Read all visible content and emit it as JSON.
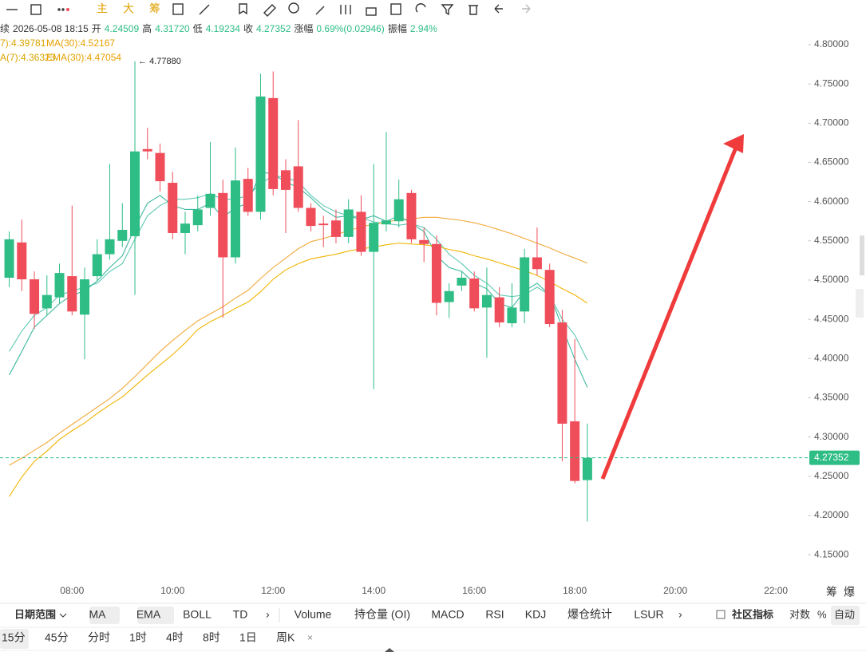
{
  "toolbar": {
    "top_labels": [
      "主",
      "大",
      "筹"
    ]
  },
  "info": {
    "prefix": "续",
    "datetime": "2026-05-08 18:15",
    "open_label": "开",
    "open": "4.24509",
    "high_label": "高",
    "high": "4.31720",
    "low_label": "低",
    "low": "4.19234",
    "close_label": "收",
    "close": "4.27352",
    "change_label": "涨幅",
    "change": "0.69%(0.02946)",
    "amplitude_label": "振幅",
    "amplitude": "2.94%"
  },
  "chart_data": {
    "type": "candlestick",
    "x": [
      "06:45",
      "07:00",
      "07:15",
      "07:30",
      "07:45",
      "08:00",
      "08:15",
      "08:30",
      "08:45",
      "09:00",
      "09:15",
      "09:30",
      "09:45",
      "10:00",
      "10:15",
      "10:30",
      "10:45",
      "11:00",
      "11:15",
      "11:30",
      "11:45",
      "12:00",
      "12:15",
      "12:30",
      "12:45",
      "13:00",
      "13:15",
      "13:30",
      "13:45",
      "14:00",
      "14:15",
      "14:30",
      "14:45",
      "15:00",
      "15:15",
      "15:30",
      "15:45",
      "16:00",
      "16:15",
      "16:30",
      "16:45",
      "17:00",
      "17:15",
      "17:30",
      "17:45",
      "18:00",
      "18:15"
    ],
    "open": [
      4.503,
      4.548,
      4.501,
      4.464,
      4.478,
      4.505,
      4.456,
      4.505,
      4.533,
      4.55,
      4.556,
      4.667,
      4.662,
      4.624,
      4.56,
      4.57,
      4.592,
      4.611,
      4.529,
      4.629,
      4.587,
      4.732,
      4.64,
      4.645,
      4.592,
      4.572,
      4.576,
      4.555,
      4.587,
      4.536,
      4.571,
      4.575,
      4.611,
      4.551,
      4.546,
      4.472,
      4.493,
      4.502,
      4.465,
      4.478,
      4.445,
      4.46,
      4.529,
      4.513,
      4.446,
      4.32,
      4.24509
    ],
    "high": [
      4.562,
      4.577,
      4.511,
      4.506,
      4.521,
      4.595,
      4.516,
      4.552,
      4.648,
      4.598,
      4.7788,
      4.694,
      4.674,
      4.638,
      4.587,
      4.608,
      4.676,
      4.628,
      4.669,
      4.643,
      4.763,
      4.766,
      4.654,
      4.704,
      4.598,
      4.582,
      4.59,
      4.603,
      4.608,
      4.648,
      4.689,
      4.628,
      4.615,
      4.567,
      4.557,
      4.496,
      4.511,
      4.511,
      4.516,
      4.491,
      4.496,
      4.54,
      4.567,
      4.521,
      4.462,
      4.425,
      4.3172
    ],
    "low": [
      4.491,
      4.486,
      4.438,
      4.455,
      4.47,
      4.455,
      4.399,
      4.499,
      4.526,
      4.542,
      4.481,
      4.654,
      4.613,
      4.552,
      4.533,
      4.562,
      4.582,
      4.452,
      4.521,
      4.582,
      4.577,
      4.608,
      4.56,
      4.587,
      4.562,
      4.542,
      4.547,
      4.547,
      4.531,
      4.361,
      4.562,
      4.567,
      4.547,
      4.523,
      4.455,
      4.452,
      4.486,
      4.46,
      4.401,
      4.44,
      4.44,
      4.445,
      4.506,
      4.44,
      4.269,
      4.241,
      4.19234
    ],
    "close": [
      4.552,
      4.501,
      4.457,
      4.481,
      4.509,
      4.46,
      4.501,
      4.533,
      4.552,
      4.564,
      4.664,
      4.664,
      4.626,
      4.56,
      4.572,
      4.59,
      4.61,
      4.529,
      4.627,
      4.587,
      4.734,
      4.616,
      4.615,
      4.592,
      4.569,
      4.57,
      4.555,
      4.59,
      4.536,
      4.573,
      4.576,
      4.603,
      4.552,
      4.546,
      4.471,
      4.486,
      4.503,
      4.464,
      4.481,
      4.446,
      4.465,
      4.529,
      4.514,
      4.444,
      4.317,
      4.244,
      4.27352
    ],
    "up_color": "#2ebd85",
    "down_color": "#ef4d5a",
    "series": [
      {
        "name": "7):4.39781",
        "color": "#5cc9b3",
        "values": [
          4.409,
          4.435,
          4.455,
          4.465,
          4.481,
          4.486,
          4.491,
          4.496,
          4.511,
          4.521,
          4.552,
          4.582,
          4.595,
          4.603,
          4.603,
          4.605,
          4.61,
          4.603,
          4.603,
          4.608,
          4.623,
          4.633,
          4.631,
          4.625,
          4.608,
          4.595,
          4.587,
          4.582,
          4.58,
          4.574,
          4.572,
          4.57,
          4.572,
          4.567,
          4.552,
          4.533,
          4.521,
          4.506,
          4.496,
          4.481,
          4.479,
          4.481,
          4.491,
          4.481,
          4.45,
          4.43,
          4.39781
        ]
      },
      {
        "name": "MA(30):4.52167",
        "color": "#f2a93b",
        "values": [
          4.264,
          4.273,
          4.283,
          4.293,
          4.305,
          4.316,
          4.327,
          4.338,
          4.349,
          4.362,
          4.377,
          4.393,
          4.409,
          4.423,
          4.436,
          4.448,
          4.457,
          4.466,
          4.477,
          4.487,
          4.502,
          4.516,
          4.528,
          4.54,
          4.549,
          4.553,
          4.558,
          4.563,
          4.568,
          4.571,
          4.574,
          4.577,
          4.578,
          4.58,
          4.58,
          4.578,
          4.576,
          4.573,
          4.569,
          4.564,
          4.559,
          4.553,
          4.547,
          4.541,
          4.534,
          4.528,
          4.52167
        ]
      },
      {
        "name": "A(7):4.36323",
        "color": "#3fb8a0",
        "values": [
          4.379,
          4.409,
          4.44,
          4.455,
          4.47,
          4.481,
          4.486,
          4.499,
          4.516,
          4.531,
          4.567,
          4.598,
          4.608,
          4.595,
          4.59,
          4.59,
          4.598,
          4.58,
          4.592,
          4.598,
          4.638,
          4.635,
          4.625,
          4.618,
          4.605,
          4.59,
          4.58,
          4.582,
          4.577,
          4.582,
          4.575,
          4.582,
          4.572,
          4.562,
          4.531,
          4.516,
          4.511,
          4.496,
          4.489,
          4.47,
          4.465,
          4.486,
          4.496,
          4.481,
          4.44,
          4.399,
          4.36323
        ]
      },
      {
        "name": "EMA(30):4.47054",
        "color": "#f0b400",
        "values": [
          4.224,
          4.249,
          4.269,
          4.282,
          4.297,
          4.308,
          4.318,
          4.33,
          4.341,
          4.351,
          4.365,
          4.379,
          4.392,
          4.405,
          4.42,
          4.437,
          4.447,
          4.455,
          4.464,
          4.472,
          4.485,
          4.501,
          4.513,
          4.521,
          4.527,
          4.53,
          4.533,
          4.537,
          4.54,
          4.542,
          4.545,
          4.547,
          4.546,
          4.545,
          4.543,
          4.539,
          4.536,
          4.531,
          4.527,
          4.522,
          4.517,
          4.512,
          4.506,
          4.498,
          4.489,
          4.481,
          4.47054
        ]
      }
    ],
    "xlim": [
      "06:34",
      "22:38"
    ],
    "xticks": [
      "08:00",
      "10:00",
      "12:00",
      "14:00",
      "16:00",
      "18:00",
      "20:00",
      "22:00"
    ],
    "ylim": [
      4.1145,
      4.8112
    ],
    "yticks": [
      {
        "value": 4.8,
        "label": "4.80000"
      },
      {
        "value": 4.75,
        "label": "4.75000"
      },
      {
        "value": 4.7,
        "label": "4.70000"
      },
      {
        "value": 4.65,
        "label": "4.65000"
      },
      {
        "value": 4.6,
        "label": "4.60000"
      },
      {
        "value": 4.55,
        "label": "4.55000"
      },
      {
        "value": 4.5,
        "label": "4.50000"
      },
      {
        "value": 4.45,
        "label": "4.45000"
      },
      {
        "value": 4.4,
        "label": "4.40000"
      },
      {
        "value": 4.35,
        "label": "4.35000"
      },
      {
        "value": 4.3,
        "label": "4.30000"
      },
      {
        "value": 4.25,
        "label": "4.25000"
      },
      {
        "value": 4.2,
        "label": "4.20000"
      },
      {
        "value": 4.15,
        "label": "4.15000"
      }
    ],
    "high_annotation": {
      "value": 4.7788,
      "label": "← 4.77880"
    },
    "last_price": {
      "value": 4.27352,
      "label": "4.27352"
    },
    "right_labels": [
      "筹",
      "爆"
    ]
  },
  "bottom_toolbar": {
    "date_range": "日期范围",
    "indicators": [
      "MA",
      "EMA",
      "BOLL",
      "TD"
    ],
    "more": "›",
    "sub_indicators": [
      "Volume",
      "持仓量 (OI)",
      "MACD",
      "RSI",
      "KDJ",
      "爆仓统计",
      "LSUR"
    ],
    "more2": "›",
    "community": "社区指标",
    "log": "对数",
    "percent": "%",
    "auto": "自动"
  },
  "intervals": {
    "items": [
      "15分",
      "45分",
      "分时",
      "1时",
      "4时",
      "8时",
      "1日",
      "周K"
    ],
    "close": "×"
  }
}
